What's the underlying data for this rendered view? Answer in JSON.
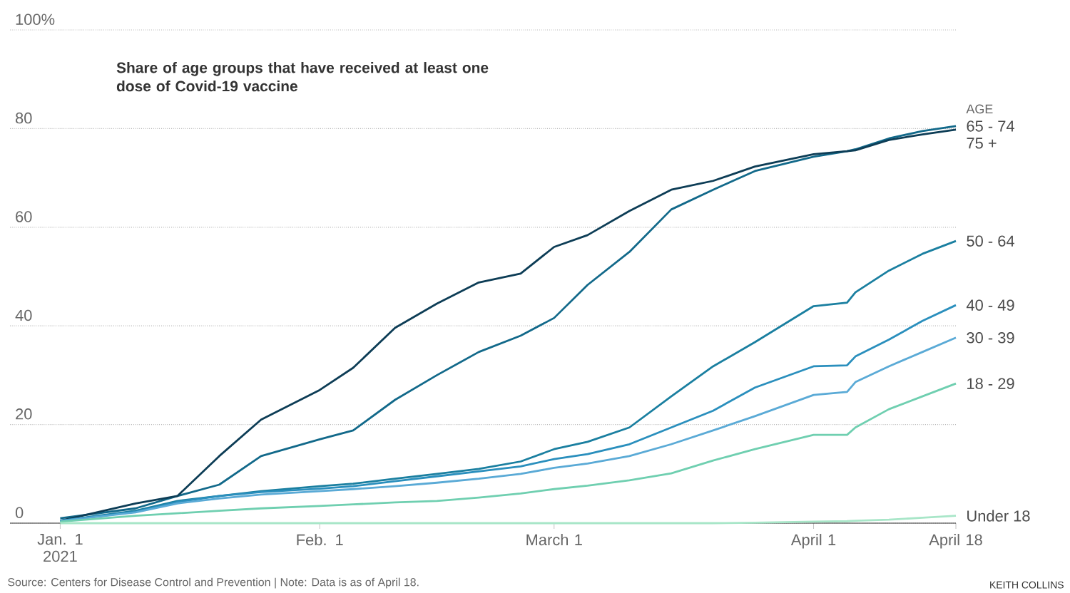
{
  "chart_data": {
    "type": "line",
    "title": "Share of age groups that have received at least one dose of Covid-19 vaccine",
    "legend_title": "AGE",
    "annotations": [
      "Source: Centers for Disease Control and Prevention | Note: Data is as of April 18.",
      "KEITH COLLINS"
    ],
    "x": [
      "2021-01-01",
      "2021-01-10",
      "2021-01-15",
      "2021-01-20",
      "2021-01-25",
      "2021-02-01",
      "2021-02-05",
      "2021-02-10",
      "2021-02-15",
      "2021-02-20",
      "2021-02-25",
      "2021-03-01",
      "2021-03-05",
      "2021-03-10",
      "2021-03-15",
      "2021-03-20",
      "2021-03-25",
      "2021-04-01",
      "2021-04-05",
      "2021-04-06",
      "2021-04-10",
      "2021-04-14",
      "2021-04-18"
    ],
    "series": [
      {
        "name": "65 - 74",
        "color": "#12698a",
        "values": [
          1,
          3,
          5.5,
          7.8,
          13.6,
          17,
          18.8,
          25,
          30,
          34.7,
          38,
          41.6,
          48.3,
          55,
          63.6,
          67.6,
          71.4,
          74.3,
          75.4,
          75.8,
          78,
          79.5,
          80.5
        ]
      },
      {
        "name": "75 +",
        "color": "#0d3d56",
        "values": [
          0.5,
          4,
          5.5,
          13.6,
          21,
          27,
          31.5,
          39.6,
          44.5,
          48.8,
          50.6,
          56,
          58.4,
          63.3,
          67.6,
          69.4,
          72.3,
          74.8,
          75.4,
          75.6,
          77.7,
          78.8,
          79.8
        ]
      },
      {
        "name": "50 - 64",
        "color": "#1a7fa0",
        "values": [
          0.5,
          2.5,
          4.5,
          5.5,
          6.5,
          7.5,
          8,
          9,
          10,
          11,
          12.5,
          15,
          16.5,
          19.4,
          25.7,
          31.8,
          36.7,
          44,
          44.7,
          46.8,
          51.2,
          54.6,
          57.2
        ]
      },
      {
        "name": "40 - 49",
        "color": "#2a8fbd",
        "values": [
          0.5,
          2.3,
          4.3,
          5.5,
          6.3,
          7,
          7.5,
          8.5,
          9.5,
          10.5,
          11.5,
          13,
          14,
          16,
          19.4,
          22.8,
          27.5,
          31.8,
          32,
          33.8,
          37.2,
          41,
          44.2
        ]
      },
      {
        "name": "30 - 39",
        "color": "#5aaad6",
        "values": [
          0.4,
          2.2,
          4,
          5,
          5.8,
          6.5,
          6.9,
          7.5,
          8.2,
          9,
          10,
          11.2,
          12.1,
          13.6,
          16,
          18.8,
          21.7,
          26,
          26.6,
          28.6,
          31.8,
          34.7,
          37.6
        ]
      },
      {
        "name": "18 - 29",
        "color": "#6fcfb0",
        "values": [
          0.3,
          1.5,
          2,
          2.5,
          3,
          3.5,
          3.8,
          4.2,
          4.5,
          5.2,
          6,
          6.9,
          7.6,
          8.7,
          10.1,
          12.7,
          15,
          17.9,
          17.9,
          19.4,
          23.1,
          25.7,
          28.3
        ]
      },
      {
        "name": "Under 18",
        "color": "#a8e6c8",
        "values": [
          0,
          0,
          0,
          0,
          0,
          0,
          0,
          0,
          0,
          0,
          0,
          0,
          0,
          0,
          0,
          0,
          0.1,
          0.3,
          0.4,
          0.5,
          0.7,
          1.1,
          1.5
        ]
      }
    ],
    "xlim": [
      "2020-12-26",
      "2021-04-18"
    ],
    "xticks": [
      {
        "value": "2021-01-01",
        "label": "Jan. 1 2021"
      },
      {
        "value": "2021-02-01",
        "label": "Feb. 1"
      },
      {
        "value": "2021-03-01",
        "label": "March 1"
      },
      {
        "value": "2021-04-01",
        "label": "April 1"
      },
      {
        "value": "2021-04-18",
        "label": "April 18"
      }
    ],
    "ylim": [
      0,
      100
    ],
    "yticks": [
      0,
      20,
      40,
      60,
      80,
      {
        "value": 100,
        "label": "100%"
      }
    ],
    "grid": "y"
  }
}
